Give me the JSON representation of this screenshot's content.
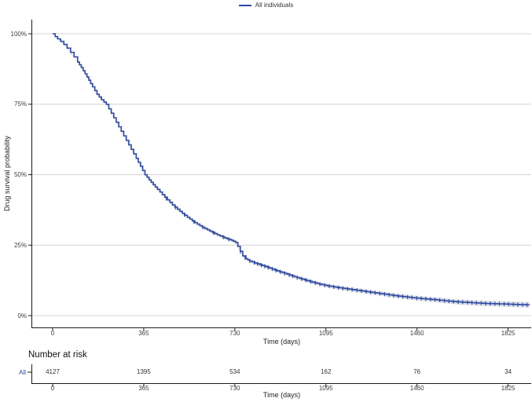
{
  "figure": {
    "background": "#ffffff",
    "accent_blue": "#2e4a9f",
    "grid_color": "#d4d4d4",
    "axis_color": "#1a1a1a",
    "ci_color": "#b8bdc9"
  },
  "legend": {
    "items": [
      {
        "label": "All individuals",
        "color": "#2e4a9f"
      }
    ]
  },
  "chart_data": {
    "type": "line",
    "subtype": "kaplan-meier-survival",
    "title": "",
    "xlabel": "Time (days)",
    "ylabel": "Drug survival probability",
    "xlim": [
      0,
      1910
    ],
    "ylim_pct": [
      0,
      100
    ],
    "xticks": [
      0,
      365,
      730,
      1095,
      1460,
      1825
    ],
    "ytick_values": [
      0,
      25,
      50,
      75,
      100
    ],
    "ytick_labels": [
      "0%",
      "25%",
      "50%",
      "75%",
      "100%"
    ],
    "grid": "horizontal-only",
    "legend_position": "top-center",
    "series": [
      {
        "name": "All individuals",
        "color": "#2e4a9f",
        "ci_band": true,
        "points_day_pct": [
          [
            0,
            100
          ],
          [
            8,
            100
          ],
          [
            10,
            99
          ],
          [
            20,
            98.2
          ],
          [
            32,
            97.3
          ],
          [
            45,
            96.2
          ],
          [
            58,
            94.9
          ],
          [
            72,
            93.4
          ],
          [
            86,
            91.8
          ],
          [
            100,
            90
          ],
          [
            115,
            88
          ],
          [
            130,
            85.8
          ],
          [
            145,
            83.5
          ],
          [
            160,
            81.2
          ],
          [
            178,
            78.5
          ],
          [
            196,
            76.6
          ],
          [
            215,
            75
          ],
          [
            235,
            71.8
          ],
          [
            255,
            68.6
          ],
          [
            275,
            65.4
          ],
          [
            295,
            62.2
          ],
          [
            315,
            59
          ],
          [
            335,
            55.8
          ],
          [
            352,
            53
          ],
          [
            370,
            50
          ],
          [
            395,
            47.3
          ],
          [
            420,
            44.8
          ],
          [
            450,
            42
          ],
          [
            480,
            39.3
          ],
          [
            510,
            37
          ],
          [
            540,
            34.9
          ],
          [
            570,
            33
          ],
          [
            600,
            31.4
          ],
          [
            630,
            30
          ],
          [
            660,
            28.7
          ],
          [
            690,
            27.6
          ],
          [
            715,
            26.8
          ],
          [
            733,
            26
          ],
          [
            742,
            24.6
          ],
          [
            752,
            22.8
          ],
          [
            762,
            21.2
          ],
          [
            775,
            20.2
          ],
          [
            790,
            19.4
          ],
          [
            810,
            18.7
          ],
          [
            830,
            18.1
          ],
          [
            860,
            17.2
          ],
          [
            890,
            16.2
          ],
          [
            920,
            15.3
          ],
          [
            950,
            14.4
          ],
          [
            980,
            13.5
          ],
          [
            1010,
            12.7
          ],
          [
            1040,
            11.9
          ],
          [
            1070,
            11.2
          ],
          [
            1100,
            10.6
          ],
          [
            1140,
            10
          ],
          [
            1180,
            9.5
          ],
          [
            1220,
            9
          ],
          [
            1260,
            8.5
          ],
          [
            1300,
            8
          ],
          [
            1340,
            7.5
          ],
          [
            1380,
            7
          ],
          [
            1420,
            6.6
          ],
          [
            1460,
            6.2
          ],
          [
            1500,
            5.9
          ],
          [
            1540,
            5.6
          ],
          [
            1580,
            5.2
          ],
          [
            1620,
            4.9
          ],
          [
            1660,
            4.7
          ],
          [
            1700,
            4.5
          ],
          [
            1740,
            4.3
          ],
          [
            1780,
            4.2
          ],
          [
            1820,
            4.1
          ],
          [
            1860,
            3.95
          ],
          [
            1910,
            3.8
          ]
        ]
      }
    ],
    "censor_marks_days": [
      455,
      492,
      528,
      566,
      602,
      645,
      684,
      706,
      752,
      771,
      790,
      808,
      822,
      836,
      850,
      864,
      880,
      895,
      912,
      930,
      948,
      962,
      980,
      997,
      1015,
      1034,
      1052,
      1071,
      1090,
      1108,
      1126,
      1145,
      1163,
      1182,
      1200,
      1219,
      1237,
      1256,
      1274,
      1292,
      1311,
      1330,
      1348,
      1366,
      1385,
      1403,
      1422,
      1440,
      1459,
      1477,
      1495,
      1514,
      1532,
      1551,
      1570,
      1588,
      1606,
      1625,
      1643,
      1662,
      1680,
      1698,
      1717,
      1735,
      1754,
      1772,
      1790,
      1809,
      1827,
      1846,
      1864,
      1883,
      1901
    ]
  },
  "risk_table": {
    "title": "Number at risk",
    "xlabel": "Time (days)",
    "times": [
      0,
      365,
      730,
      1095,
      1460,
      1825
    ],
    "rows": [
      {
        "label": "All",
        "color": "#2e4a9f",
        "values": [
          4127,
          1395,
          534,
          162,
          76,
          34
        ]
      }
    ]
  }
}
